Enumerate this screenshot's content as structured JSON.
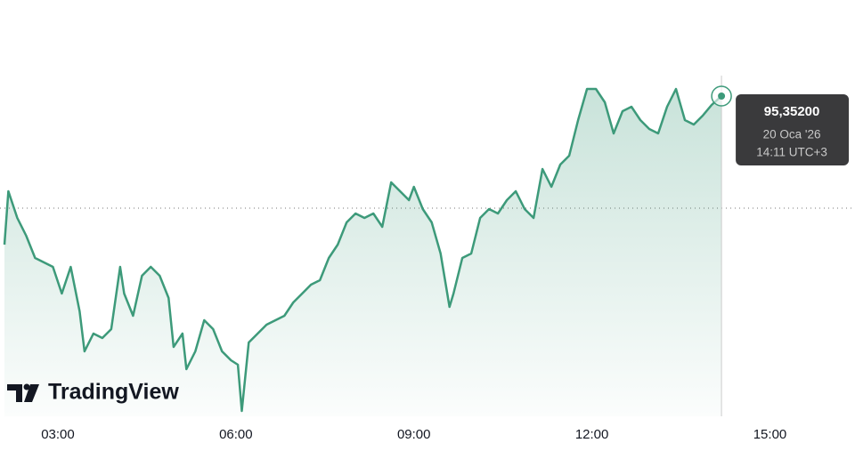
{
  "chart_data": {
    "type": "line",
    "watermark": "TradingView",
    "x": [
      "02:06",
      "02:10",
      "02:19",
      "02:28",
      "02:37",
      "02:46",
      "02:55",
      "03:04",
      "03:13",
      "03:22",
      "03:27",
      "03:36",
      "03:45",
      "03:54",
      "04:03",
      "04:07",
      "04:16",
      "04:25",
      "04:34",
      "04:43",
      "04:52",
      "04:57",
      "05:06",
      "05:10",
      "05:19",
      "05:28",
      "05:37",
      "05:46",
      "05:55",
      "06:02",
      "06:06",
      "06:13",
      "06:22",
      "06:31",
      "06:40",
      "06:49",
      "06:58",
      "07:07",
      "07:16",
      "07:25",
      "07:34",
      "07:43",
      "07:52",
      "08:01",
      "08:10",
      "08:19",
      "08:28",
      "08:37",
      "08:46",
      "08:55",
      "09:00",
      "09:09",
      "09:18",
      "09:27",
      "09:36",
      "09:40",
      "09:49",
      "09:58",
      "10:07",
      "10:16",
      "10:25",
      "10:34",
      "10:43",
      "10:52",
      "11:01",
      "11:10",
      "11:19",
      "11:28",
      "11:37",
      "11:46",
      "11:55",
      "12:04",
      "12:13",
      "12:22",
      "12:31",
      "12:40",
      "12:49",
      "12:58",
      "13:07",
      "13:16",
      "13:25",
      "13:34",
      "13:43",
      "13:52",
      "14:01",
      "14:11"
    ],
    "series": [
      {
        "color": "#3d9a7a",
        "values": [
          94.684,
          94.924,
          94.804,
          94.724,
          94.624,
          94.604,
          94.584,
          94.464,
          94.584,
          94.384,
          94.204,
          94.284,
          94.264,
          94.304,
          94.584,
          94.464,
          94.364,
          94.544,
          94.584,
          94.544,
          94.444,
          94.224,
          94.284,
          94.124,
          94.204,
          94.344,
          94.304,
          94.204,
          94.164,
          94.144,
          93.936,
          94.244,
          94.284,
          94.324,
          94.344,
          94.364,
          94.424,
          94.464,
          94.504,
          94.524,
          94.624,
          94.684,
          94.784,
          94.824,
          94.804,
          94.824,
          94.764,
          94.964,
          94.924,
          94.884,
          94.944,
          94.844,
          94.784,
          94.644,
          94.404,
          94.464,
          94.624,
          94.644,
          94.804,
          94.844,
          94.824,
          94.884,
          94.924,
          94.844,
          94.804,
          95.024,
          94.944,
          95.044,
          95.084,
          95.244,
          95.384,
          95.384,
          95.324,
          95.184,
          95.284,
          95.304,
          95.244,
          95.204,
          95.184,
          95.304,
          95.384,
          95.244,
          95.224,
          95.264,
          95.312,
          95.352
        ]
      }
    ],
    "previous_close": 94.848,
    "tooltip": {
      "value_label": "95,35200",
      "date": "20 Oca '26",
      "time": "14:11 UTC+3"
    },
    "xlim": [
      "02:06",
      "16:26"
    ],
    "xticks": [
      "03:00",
      "06:00",
      "09:00",
      "12:00",
      "15:00"
    ],
    "ylim": [
      93.904,
      95.784
    ]
  }
}
